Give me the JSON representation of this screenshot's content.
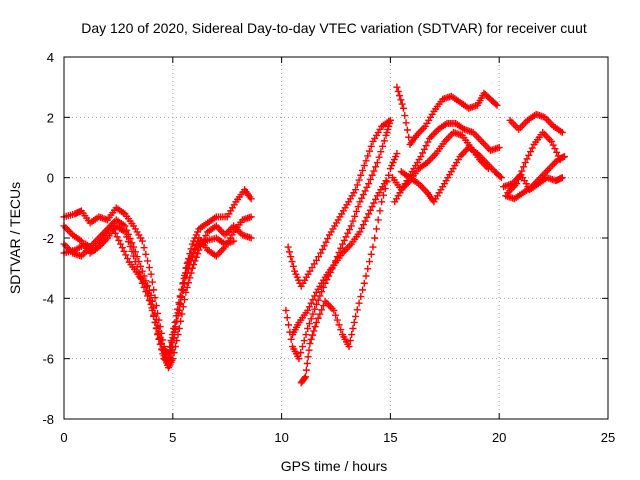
{
  "chart_data": {
    "type": "scatter",
    "title": "Day 120 of 2020, Sidereal Day-to-day VTEC variation (SDTVAR) for receiver cuut",
    "xlabel": "GPS time / hours",
    "ylabel": "SDTVAR / TECUs",
    "xlim": [
      0,
      25
    ],
    "ylim": [
      -8,
      4
    ],
    "xticks": [
      "0",
      "5",
      "10",
      "15",
      "20",
      "25"
    ],
    "yticks": [
      "-8",
      "-6",
      "-4",
      "-2",
      "0",
      "2",
      "4"
    ],
    "grid": true,
    "marker": "plus",
    "color": "#ff0000",
    "series": [
      {
        "segments": [
          [
            [
              0.0,
              -1.3
            ],
            [
              0.5,
              -1.2
            ],
            [
              0.8,
              -1.1
            ],
            [
              1.2,
              -1.5
            ],
            [
              1.6,
              -1.3
            ],
            [
              2.0,
              -1.4
            ],
            [
              2.4,
              -1.0
            ],
            [
              2.8,
              -1.2
            ],
            [
              3.2,
              -1.6
            ],
            [
              3.6,
              -2.1
            ],
            [
              4.0,
              -3.2
            ],
            [
              4.3,
              -4.5
            ],
            [
              4.6,
              -5.6
            ],
            [
              4.8,
              -6.2
            ],
            [
              5.0,
              -5.6
            ],
            [
              5.3,
              -4.2
            ],
            [
              5.6,
              -3.0
            ],
            [
              5.9,
              -2.2
            ],
            [
              6.2,
              -1.7
            ],
            [
              6.6,
              -1.5
            ],
            [
              7.0,
              -1.3
            ],
            [
              7.5,
              -1.3
            ],
            [
              7.9,
              -0.8
            ],
            [
              8.3,
              -0.4
            ],
            [
              8.6,
              -0.7
            ]
          ],
          [
            [
              10.3,
              -2.3
            ],
            [
              10.6,
              -3.1
            ],
            [
              10.9,
              -3.6
            ],
            [
              11.3,
              -3.1
            ],
            [
              11.8,
              -2.5
            ],
            [
              12.2,
              -1.9
            ],
            [
              12.6,
              -1.4
            ],
            [
              13.0,
              -0.9
            ],
            [
              13.4,
              -0.4
            ],
            [
              13.8,
              0.4
            ],
            [
              14.2,
              1.2
            ],
            [
              14.6,
              1.7
            ],
            [
              15.0,
              1.9
            ]
          ],
          [
            [
              15.3,
              3.0
            ],
            [
              15.6,
              2.3
            ],
            [
              15.9,
              1.1
            ],
            [
              16.2,
              1.4
            ],
            [
              16.6,
              1.7
            ],
            [
              17.0,
              2.2
            ],
            [
              17.4,
              2.6
            ],
            [
              17.8,
              2.7
            ],
            [
              18.2,
              2.5
            ],
            [
              18.6,
              2.3
            ],
            [
              19.0,
              2.4
            ],
            [
              19.3,
              2.8
            ],
            [
              19.6,
              2.6
            ],
            [
              19.9,
              2.4
            ]
          ],
          [
            [
              20.5,
              1.9
            ],
            [
              20.9,
              1.6
            ],
            [
              21.3,
              1.9
            ],
            [
              21.7,
              2.1
            ],
            [
              22.1,
              2.0
            ],
            [
              22.5,
              1.7
            ],
            [
              22.9,
              1.5
            ]
          ]
        ]
      },
      {
        "segments": [
          [
            [
              0.0,
              -2.2
            ],
            [
              0.4,
              -2.5
            ],
            [
              0.8,
              -2.6
            ],
            [
              1.2,
              -2.3
            ],
            [
              1.6,
              -2.0
            ],
            [
              2.0,
              -1.7
            ],
            [
              2.4,
              -1.4
            ],
            [
              2.8,
              -1.6
            ],
            [
              3.2,
              -2.3
            ],
            [
              3.6,
              -3.1
            ],
            [
              4.0,
              -3.9
            ],
            [
              4.3,
              -4.9
            ],
            [
              4.6,
              -5.9
            ],
            [
              4.8,
              -6.3
            ],
            [
              5.0,
              -6.0
            ],
            [
              5.3,
              -5.0
            ],
            [
              5.6,
              -3.8
            ],
            [
              5.9,
              -3.0
            ],
            [
              6.2,
              -2.4
            ],
            [
              6.6,
              -1.8
            ],
            [
              7.0,
              -1.6
            ],
            [
              7.4,
              -1.9
            ],
            [
              7.8,
              -1.6
            ],
            [
              8.2,
              -1.9
            ],
            [
              8.6,
              -2.0
            ]
          ],
          [
            [
              10.2,
              -4.4
            ],
            [
              10.5,
              -5.6
            ],
            [
              10.8,
              -6.0
            ],
            [
              11.2,
              -5.0
            ],
            [
              11.6,
              -4.2
            ],
            [
              12.0,
              -3.5
            ],
            [
              12.4,
              -2.9
            ],
            [
              12.8,
              -2.2
            ],
            [
              13.2,
              -1.6
            ],
            [
              13.6,
              -0.8
            ],
            [
              14.0,
              -0.2
            ],
            [
              14.4,
              0.5
            ],
            [
              14.8,
              1.4
            ],
            [
              15.0,
              1.9
            ]
          ],
          [
            [
              15.2,
              -0.8
            ],
            [
              15.6,
              -0.3
            ],
            [
              16.0,
              0.2
            ],
            [
              16.4,
              0.7
            ],
            [
              16.8,
              1.3
            ],
            [
              17.2,
              1.6
            ],
            [
              17.6,
              1.8
            ],
            [
              18.0,
              1.8
            ],
            [
              18.4,
              1.6
            ],
            [
              18.8,
              1.5
            ],
            [
              19.2,
              1.2
            ],
            [
              19.6,
              0.9
            ],
            [
              20.0,
              1.0
            ]
          ],
          [
            [
              20.4,
              -0.5
            ],
            [
              20.8,
              -0.2
            ],
            [
              21.2,
              0.5
            ],
            [
              21.6,
              1.1
            ],
            [
              22.0,
              1.5
            ],
            [
              22.4,
              1.2
            ],
            [
              22.8,
              0.6
            ]
          ]
        ]
      },
      {
        "segments": [
          [
            [
              0.0,
              -1.6
            ],
            [
              0.4,
              -1.9
            ],
            [
              0.8,
              -2.1
            ],
            [
              1.2,
              -2.5
            ],
            [
              1.6,
              -2.3
            ],
            [
              2.0,
              -2.0
            ],
            [
              2.4,
              -1.6
            ],
            [
              2.8,
              -1.8
            ],
            [
              3.2,
              -2.6
            ],
            [
              3.6,
              -3.5
            ],
            [
              4.0,
              -4.2
            ],
            [
              4.3,
              -5.2
            ],
            [
              4.6,
              -6.0
            ],
            [
              4.8,
              -6.1
            ],
            [
              5.0,
              -5.3
            ],
            [
              5.3,
              -4.4
            ],
            [
              5.6,
              -3.3
            ],
            [
              5.9,
              -2.6
            ],
            [
              6.2,
              -2.0
            ],
            [
              6.6,
              -2.4
            ],
            [
              7.0,
              -2.6
            ],
            [
              7.4,
              -2.3
            ],
            [
              7.8,
              -1.8
            ],
            [
              8.2,
              -1.4
            ],
            [
              8.6,
              -1.3
            ]
          ],
          [
            [
              10.9,
              -6.8
            ],
            [
              11.1,
              -6.6
            ],
            [
              11.3,
              -5.5
            ],
            [
              11.6,
              -4.8
            ],
            [
              12.0,
              -4.1
            ],
            [
              12.4,
              -4.4
            ],
            [
              12.8,
              -5.2
            ],
            [
              13.1,
              -5.6
            ],
            [
              13.4,
              -4.6
            ],
            [
              13.8,
              -3.5
            ],
            [
              14.2,
              -2.3
            ],
            [
              14.6,
              -0.8
            ],
            [
              15.0,
              0.3
            ],
            [
              15.3,
              0.8
            ]
          ],
          [
            [
              15.5,
              0.2
            ],
            [
              15.9,
              0.0
            ],
            [
              16.3,
              -0.2
            ],
            [
              16.7,
              -0.5
            ],
            [
              17.0,
              -0.8
            ],
            [
              17.4,
              -0.3
            ],
            [
              17.8,
              0.2
            ],
            [
              18.2,
              0.7
            ],
            [
              18.6,
              1.0
            ],
            [
              19.0,
              0.8
            ],
            [
              19.4,
              0.5
            ],
            [
              19.8,
              0.2
            ],
            [
              20.1,
              0.0
            ]
          ],
          [
            [
              20.3,
              -0.6
            ],
            [
              20.7,
              -0.7
            ],
            [
              21.1,
              -0.5
            ],
            [
              21.5,
              -0.3
            ],
            [
              21.9,
              0.0
            ],
            [
              22.3,
              0.3
            ],
            [
              22.7,
              0.6
            ],
            [
              23.0,
              0.7
            ]
          ]
        ]
      },
      {
        "segments": [
          [
            [
              0.0,
              -2.5
            ],
            [
              0.5,
              -2.4
            ],
            [
              1.0,
              -2.2
            ],
            [
              1.4,
              -2.4
            ],
            [
              1.8,
              -2.0
            ],
            [
              2.2,
              -1.6
            ],
            [
              2.6,
              -2.2
            ],
            [
              3.0,
              -2.8
            ],
            [
              3.4,
              -3.2
            ],
            [
              3.8,
              -3.6
            ],
            [
              4.2,
              -4.8
            ],
            [
              4.5,
              -5.7
            ],
            [
              4.8,
              -5.8
            ],
            [
              5.1,
              -4.8
            ],
            [
              5.4,
              -3.7
            ],
            [
              5.7,
              -2.8
            ],
            [
              6.1,
              -2.3
            ],
            [
              6.5,
              -2.1
            ],
            [
              7.0,
              -2.0
            ],
            [
              7.4,
              -2.2
            ],
            [
              7.8,
              -2.1
            ]
          ],
          [
            [
              10.5,
              -5.2
            ],
            [
              10.8,
              -4.8
            ],
            [
              11.2,
              -4.4
            ],
            [
              11.6,
              -3.8
            ],
            [
              12.0,
              -3.3
            ],
            [
              12.4,
              -2.9
            ],
            [
              12.8,
              -2.5
            ],
            [
              13.2,
              -2.2
            ],
            [
              13.6,
              -1.8
            ],
            [
              14.0,
              -1.2
            ],
            [
              14.4,
              -0.6
            ],
            [
              14.8,
              -0.1
            ]
          ],
          [
            [
              15.1,
              0.0
            ],
            [
              15.5,
              -0.4
            ],
            [
              15.9,
              -0.1
            ],
            [
              16.3,
              0.3
            ],
            [
              16.7,
              0.5
            ],
            [
              17.1,
              0.8
            ],
            [
              17.5,
              1.2
            ],
            [
              17.9,
              1.5
            ],
            [
              18.3,
              1.4
            ],
            [
              18.7,
              1.0
            ],
            [
              19.1,
              0.6
            ],
            [
              19.5,
              0.3
            ]
          ],
          [
            [
              20.2,
              -0.3
            ],
            [
              20.6,
              -0.2
            ],
            [
              21.0,
              0.1
            ],
            [
              21.4,
              -0.4
            ],
            [
              21.8,
              -0.2
            ],
            [
              22.2,
              0.0
            ],
            [
              22.6,
              -0.1
            ],
            [
              22.9,
              0.0
            ]
          ]
        ]
      }
    ]
  }
}
